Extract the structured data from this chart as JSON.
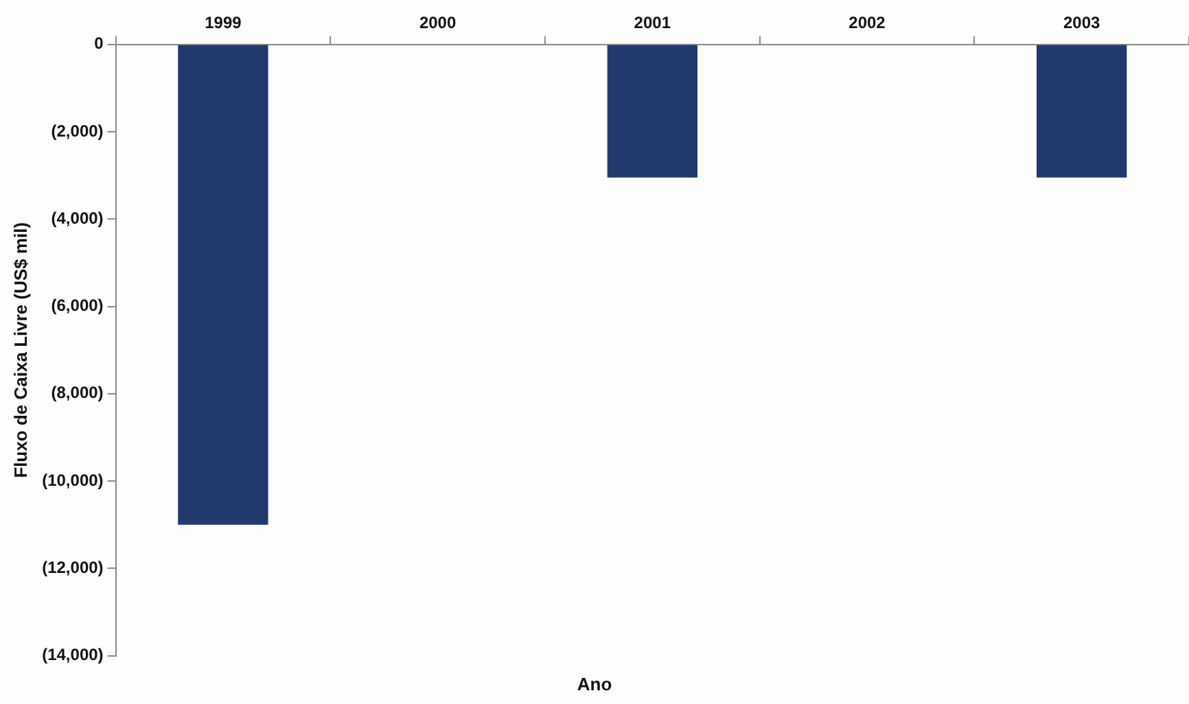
{
  "chart_data": {
    "type": "bar",
    "xlabel": "Ano",
    "ylabel": "Fluxo de Caixa Livre (US$ mil)",
    "categories": [
      "1999",
      "2000",
      "2001",
      "2002",
      "2003"
    ],
    "values": [
      -11000,
      0,
      -3050,
      0,
      -3050
    ],
    "color": "#1f3a6b",
    "ylim": [
      -14000,
      0
    ],
    "yticks": [
      {
        "value": 0,
        "label": "0"
      },
      {
        "value": -2000,
        "label": "(2,000)"
      },
      {
        "value": -4000,
        "label": "(4,000)"
      },
      {
        "value": -6000,
        "label": "(6,000)"
      },
      {
        "value": -8000,
        "label": "(8,000)"
      },
      {
        "value": -10000,
        "label": "(10,000)"
      },
      {
        "value": -12000,
        "label": "(12,000)"
      },
      {
        "value": -14000,
        "label": "(14,000)"
      }
    ],
    "grid": false,
    "legend": false
  }
}
